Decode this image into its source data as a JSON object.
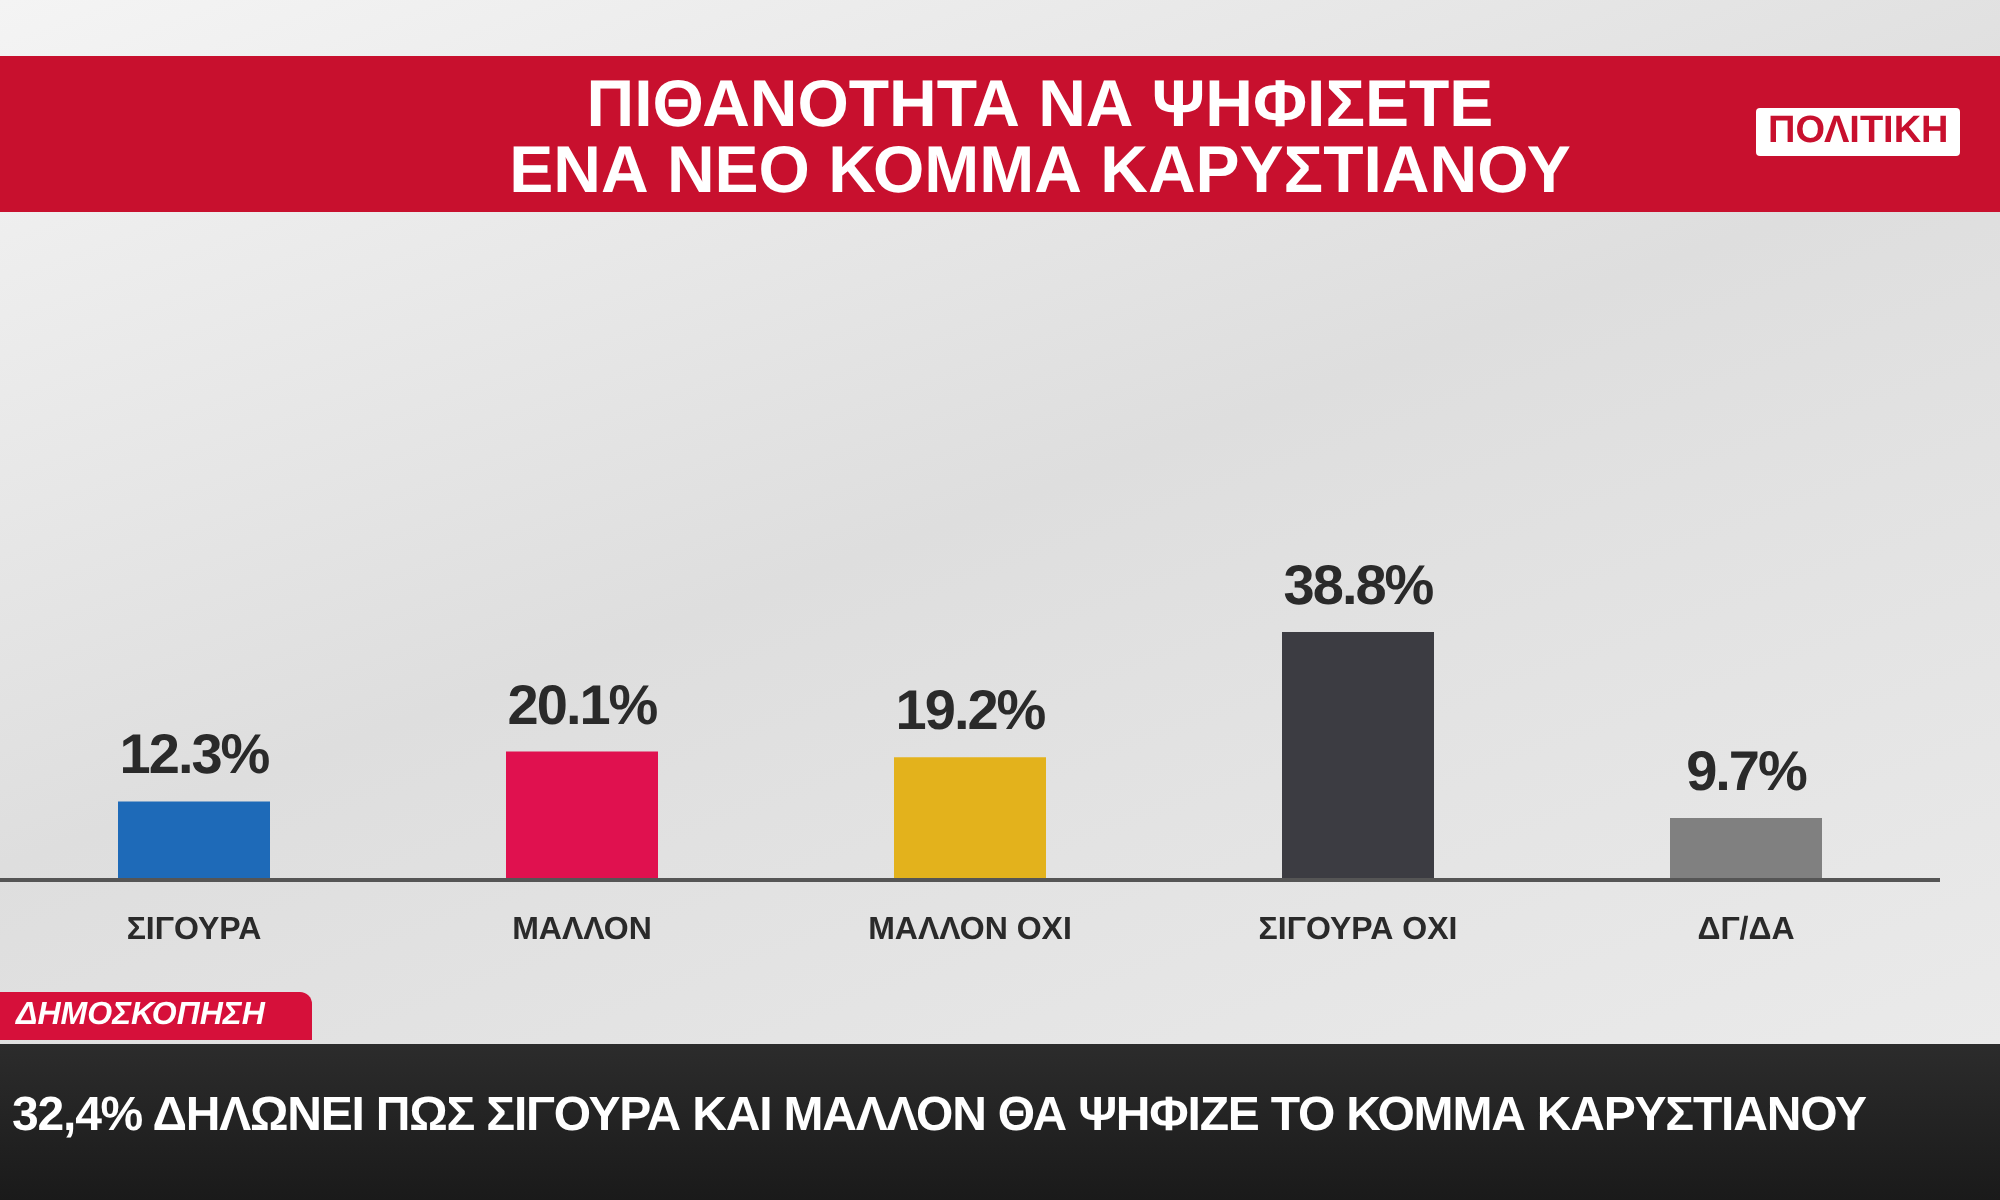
{
  "chart_data": {
    "type": "bar",
    "title": "ΠΙΘΑΝΟΤΗΤΑ ΝΑ ΨΗΦΙΣΕΤΕ ΕΝΑ ΝΕΟ ΚΟΜΜΑ ΚΑΡΥΣΤΙΑΝΟΥ",
    "categories": [
      "ΣΙΓΟΥΡΑ",
      "ΜΑΛΛΟΝ",
      "ΜΑΛΛΟΝ ΟΧΙ",
      "ΣΙΓΟΥΡΑ ΟΧΙ",
      "ΔΓ/ΔΑ"
    ],
    "values": [
      12.3,
      20.1,
      19.2,
      38.8,
      9.7
    ],
    "value_labels": [
      "12.3%",
      "20.1%",
      "19.2%",
      "38.8%",
      "9.7%"
    ],
    "colors": [
      "#1e6ab8",
      "#e0114f",
      "#e3b21c",
      "#3c3c42",
      "#808080"
    ],
    "annotations": [
      "ΠΟΛΙΤΙΚΗ",
      "ΔΗΜΟΣΚΟΠΗΣΗ",
      "32,4% ΔΗΛΩΝΕΙ ΠΩΣ ΣΙΓΟΥΡΑ ΚΑΙ ΜΑΛΛΟΝ ΘΑ ΨΗΦΙΖΕ ΤΟ ΚΟΜΜΑ ΚΑΡΥΣΤΙΑΝΟΥ"
    ],
    "grid": false,
    "legend": false
  }
}
